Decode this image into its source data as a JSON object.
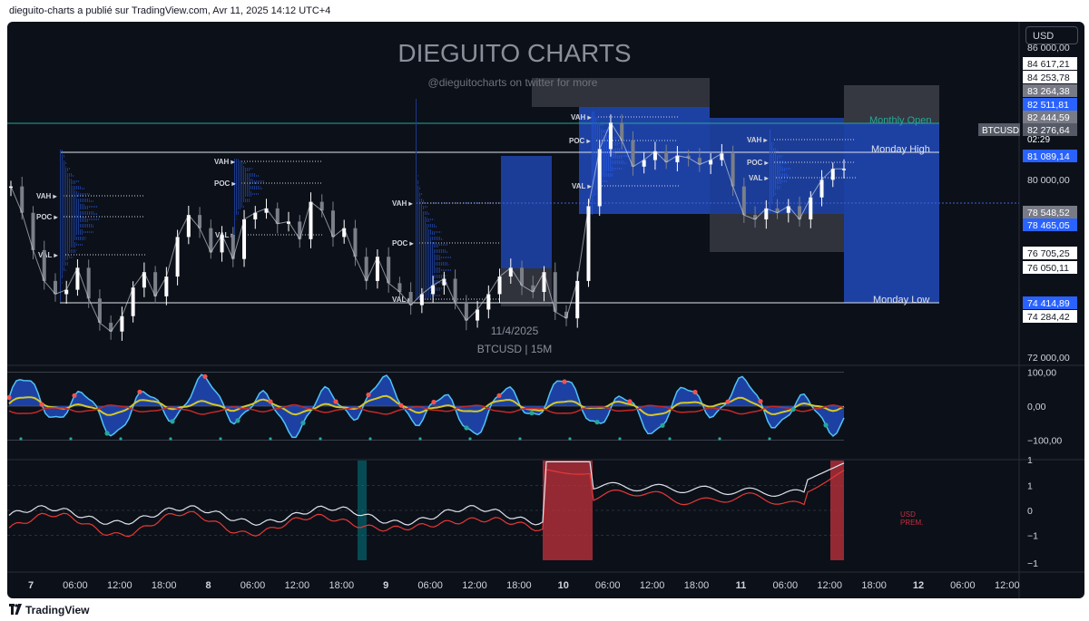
{
  "header": {
    "text": "dieguito-charts a publié sur TradingView.com, Avr 11, 2025 14:12 UTC+4"
  },
  "footer": {
    "brand": "TradingView"
  },
  "chart": {
    "watermark_title": "DIEGUITO CHARTS",
    "watermark_sub": "@dieguitocharts on twitter for more",
    "date_label": "11/4/2025",
    "symbol_interval": "BTCUSD | 15M",
    "currency_button": "USD",
    "symbol_tag": "BTCUSD",
    "countdown": "02:29",
    "level_labels": {
      "monthly_open": "Monthly Open",
      "monday_high": "Monday High",
      "monday_low": "Monday Low"
    },
    "indicator_label": [
      "USD",
      "PREM."
    ],
    "profile_markers": [
      "VAH",
      "POC",
      "VAL"
    ]
  },
  "chart_data": [
    {
      "type": "line",
      "title": "BTCUSD | 15M",
      "x_ticks": [
        "7",
        "06:00",
        "12:00",
        "18:00",
        "8",
        "06:00",
        "12:00",
        "18:00",
        "9",
        "06:00",
        "12:00",
        "18:00",
        "10",
        "06:00",
        "12:00",
        "18:00",
        "11",
        "06:00",
        "12:00",
        "18:00",
        "12",
        "06:00",
        "12:00"
      ],
      "y_axis_ticks": [
        "86 000,00",
        "80 000,00",
        "72 000,00"
      ],
      "price_scale_labels": [
        {
          "text": "84 617,21",
          "style": "white"
        },
        {
          "text": "84 253,78",
          "style": "white"
        },
        {
          "text": "83 264,38",
          "style": "gray"
        },
        {
          "text": "82 511,81",
          "style": "blue"
        },
        {
          "text": "82 444,59",
          "style": "gray"
        },
        {
          "text": "82 276,64",
          "style": "darkgray"
        },
        {
          "text": "81 089,14",
          "style": "blue"
        },
        {
          "text": "78 548,52",
          "style": "gray"
        },
        {
          "text": "78 465,05",
          "style": "blue"
        },
        {
          "text": "76 705,25",
          "style": "white"
        },
        {
          "text": "76 050,11",
          "style": "white"
        },
        {
          "text": "74 414,89",
          "style": "blue"
        },
        {
          "text": "74 284,42",
          "style": "white"
        }
      ],
      "series": [
        {
          "name": "BTCUSD",
          "values": [
            81500,
            80300,
            78600,
            77200,
            76600,
            76800,
            77800,
            76400,
            75300,
            74900,
            75600,
            76900,
            77600,
            76500,
            77400,
            79200,
            80200,
            79600,
            78500,
            79300,
            78200,
            80000,
            80300,
            80500,
            79800,
            79900,
            79100,
            80800,
            80400,
            79200,
            79600,
            78300,
            77200,
            78300,
            77100,
            76700,
            76100,
            76600,
            77000,
            77300,
            76200,
            75400,
            75900,
            76600,
            77400,
            77800,
            77000,
            76700,
            77600,
            75800,
            75500,
            77200,
            80600,
            83200,
            84400,
            83600,
            82400,
            82700,
            83100,
            82600,
            82900,
            82800,
            82500,
            82700,
            83000,
            81500,
            80200,
            80000,
            80500,
            80300,
            80600,
            80000,
            81000,
            81800,
            82300,
            82300
          ]
        }
      ],
      "colors": {
        "candle_up": "#ffffff",
        "candle_down": "#7a7f88",
        "profile": "#2962ff",
        "monthly_open": "#26a69a"
      }
    },
    {
      "type": "line",
      "name": "oscillator",
      "y_axis_ticks": [
        "100,00",
        "0,00",
        "−100,00"
      ],
      "ylim": [
        -110,
        115
      ]
    },
    {
      "type": "line",
      "name": "USD premium",
      "y_axis_ticks": [
        "1",
        "1",
        "0",
        "−1",
        "−1"
      ]
    }
  ]
}
